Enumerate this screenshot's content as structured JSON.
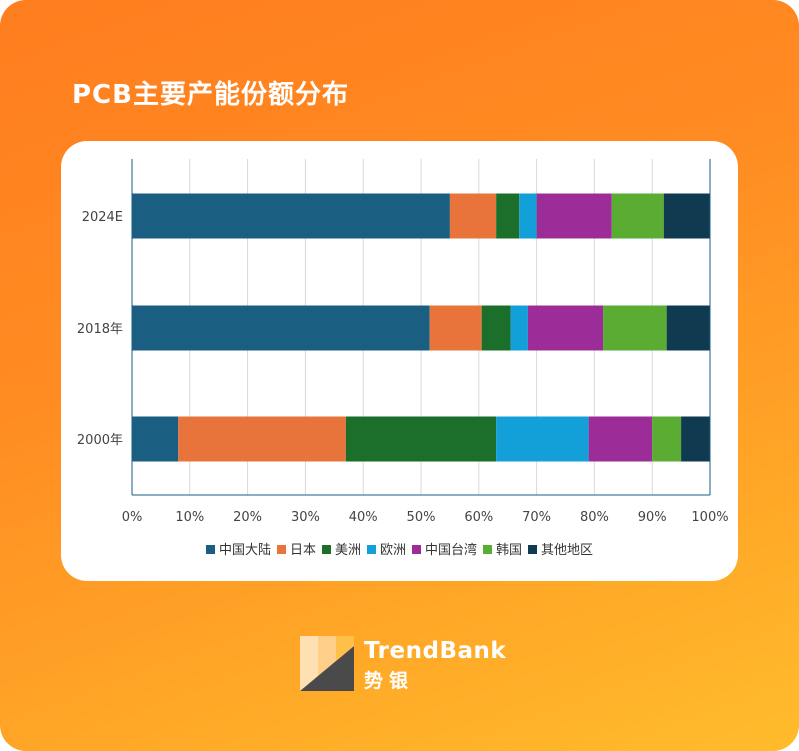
{
  "title": "PCB主要产能份额分布",
  "brand": {
    "name": "TrendBank",
    "name_cn": "势银"
  },
  "chart_data": {
    "type": "bar",
    "orientation": "horizontal",
    "stacked": true,
    "categories": [
      "2024E",
      "2018年",
      "2000年"
    ],
    "series": [
      {
        "name": "中国大陆",
        "color": "#1a5e82",
        "values": [
          55,
          51.5,
          8
        ]
      },
      {
        "name": "日本",
        "color": "#e8743b",
        "values": [
          8,
          9,
          29
        ]
      },
      {
        "name": "美洲",
        "color": "#1b6f2a",
        "values": [
          4,
          5,
          26
        ]
      },
      {
        "name": "欧洲",
        "color": "#13a0d8",
        "values": [
          3,
          3,
          16
        ]
      },
      {
        "name": "中国台湾",
        "color": "#9c2c98",
        "values": [
          13,
          13,
          11
        ]
      },
      {
        "name": "韩国",
        "color": "#5aad32",
        "values": [
          9,
          11,
          5
        ]
      },
      {
        "name": "其他地区",
        "color": "#0f3a50",
        "values": [
          8,
          7.5,
          5
        ]
      }
    ],
    "x_ticks": [
      "0%",
      "10%",
      "20%",
      "30%",
      "40%",
      "50%",
      "60%",
      "70%",
      "80%",
      "90%",
      "100%"
    ],
    "xlim": [
      0,
      100
    ],
    "grid": true,
    "legend_position": "bottom"
  }
}
